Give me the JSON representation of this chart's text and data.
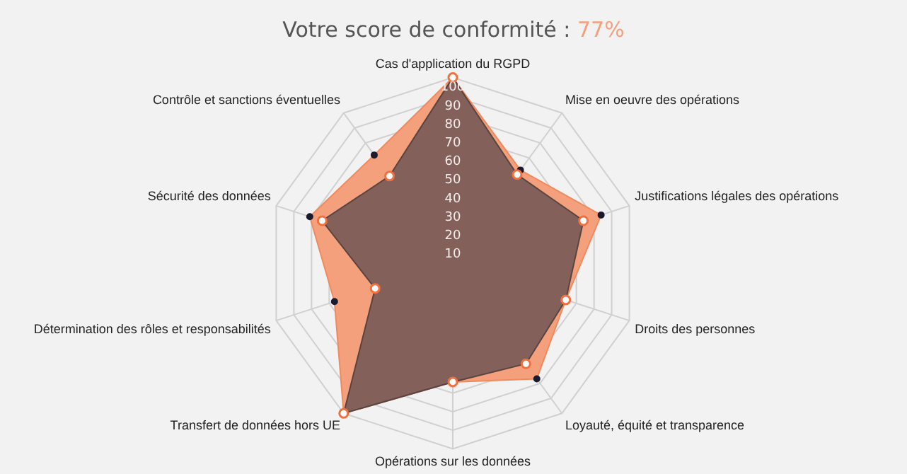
{
  "chart_data": {
    "type": "radar",
    "title": "Votre score de conformité : 77%",
    "categories": [
      "Cas d'application du RGPD",
      "Mise en oeuvre des opérations",
      "Justifications légales des opérations",
      "Droits des personnes",
      "Loyauté, équité et transparence",
      "Opérations sur les données",
      "Transfert de données hors UE",
      "Détermination des rôles et responsabilités",
      "Sécurité des données",
      "Contrôle et sanctions éventuelles"
    ],
    "series": [
      {
        "color": "#f4a07c",
        "values": [
          100,
          62,
          84,
          64,
          77,
          64,
          100,
          67,
          81,
          72
        ]
      },
      {
        "color": "#7a5c58",
        "values": [
          100,
          59,
          74,
          64,
          67,
          64,
          100,
          44,
          74,
          58
        ]
      }
    ],
    "ylim": [
      0,
      100
    ],
    "yticks": [
      10,
      20,
      30,
      40,
      50,
      60,
      70,
      80,
      90,
      100
    ],
    "grid": true,
    "legend": false,
    "marker": "circle"
  }
}
